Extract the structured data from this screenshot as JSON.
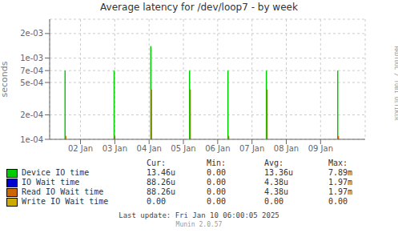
{
  "chart_data": {
    "type": "spike",
    "title": "Average latency for /dev/loop7  -  by week",
    "y_label": "seconds",
    "log": "y",
    "grid": true,
    "xlim": [
      0.1,
      9.3
    ],
    "xticks": [
      {
        "value": 1,
        "label": "02 Jan"
      },
      {
        "value": 2,
        "label": "03 Jan"
      },
      {
        "value": 3,
        "label": "04 Jan"
      },
      {
        "value": 4,
        "label": "05 Jan"
      },
      {
        "value": 5,
        "label": "06 Jan"
      },
      {
        "value": 6,
        "label": "07 Jan"
      },
      {
        "value": 7,
        "label": "08 Jan"
      },
      {
        "value": 8,
        "label": "09 Jan"
      }
    ],
    "ylim": [
      0.0001,
      0.003
    ],
    "yticks": [
      {
        "value": 0.0001,
        "label": "1e-04"
      },
      {
        "value": 0.0002,
        "label": "2e-04"
      },
      {
        "value": 0.0005,
        "label": "5e-04"
      },
      {
        "value": 0.0007,
        "label": "7e-04"
      },
      {
        "value": 0.001,
        "label": "1e-03"
      },
      {
        "value": 0.002,
        "label": "2e-03"
      }
    ],
    "baseline": 0.0001,
    "series": [
      {
        "name": "Device IO time",
        "color": "#00cc00",
        "x": [
          0.55,
          1.98,
          3.05,
          4.18,
          5.3,
          6.42,
          8.5
        ],
        "values": [
          0.0007,
          0.0007,
          0.0014,
          0.0007,
          0.0007,
          0.0007,
          0.0007
        ]
      },
      {
        "name": "Read IO Wait time",
        "color": "#cc6600",
        "x": [
          0.57,
          2.0,
          3.07,
          4.2,
          5.32,
          6.44,
          8.52
        ],
        "values": [
          0.00011,
          0.00011,
          0.00041,
          0.00041,
          0.00011,
          0.00041,
          0.00011
        ]
      }
    ],
    "table": {
      "headers": [
        "Cur:",
        "Min:",
        "Avg:",
        "Max:"
      ],
      "rows": [
        {
          "name": "Device IO time",
          "color": "#00cc00",
          "cells": [
            "13.46u",
            "0.00",
            "13.36u",
            "7.89m"
          ]
        },
        {
          "name": "IO Wait time",
          "color": "#0000cc",
          "cells": [
            "88.26u",
            "0.00",
            "4.38u",
            "1.97m"
          ]
        },
        {
          "name": "Read IO Wait time",
          "color": "#cc6600",
          "cells": [
            "88.26u",
            "0.00",
            "4.38u",
            "1.97m"
          ]
        },
        {
          "name": "Write IO Wait time",
          "color": "#ccaa00",
          "cells": [
            "0.00",
            "0.00",
            "0.00",
            "0.00"
          ]
        }
      ]
    },
    "annotations": [
      "Last update: Fri Jan 10 06:00:05 2025",
      "Munin 2.0.57",
      "RRDTOOL / TOBI OETIKER"
    ]
  }
}
